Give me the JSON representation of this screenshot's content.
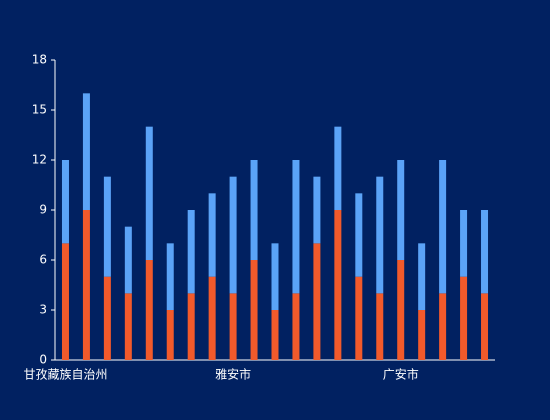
{
  "chart_data": {
    "type": "stacked-bar",
    "categories": [
      "甘孜藏族自治州",
      null,
      null,
      null,
      null,
      null,
      null,
      null,
      "雅安市",
      null,
      null,
      null,
      null,
      null,
      null,
      null,
      "广安市",
      null,
      null,
      null,
      null
    ],
    "series": [
      {
        "color": "#f25a2b",
        "values": [
          7,
          9,
          5,
          4,
          6,
          3,
          4,
          5,
          4,
          6,
          3,
          4,
          7,
          9,
          5,
          4,
          6,
          3,
          4,
          5,
          4
        ]
      },
      {
        "color": "#5ba3f7",
        "values": [
          5,
          7,
          6,
          4,
          8,
          4,
          5,
          5,
          7,
          6,
          4,
          8,
          4,
          5,
          5,
          7,
          6,
          4,
          8,
          4,
          5
        ]
      }
    ],
    "ylim": [
      0,
      18
    ],
    "yticks": [
      0,
      3,
      6,
      9,
      12,
      15,
      18
    ],
    "grid": false
  }
}
